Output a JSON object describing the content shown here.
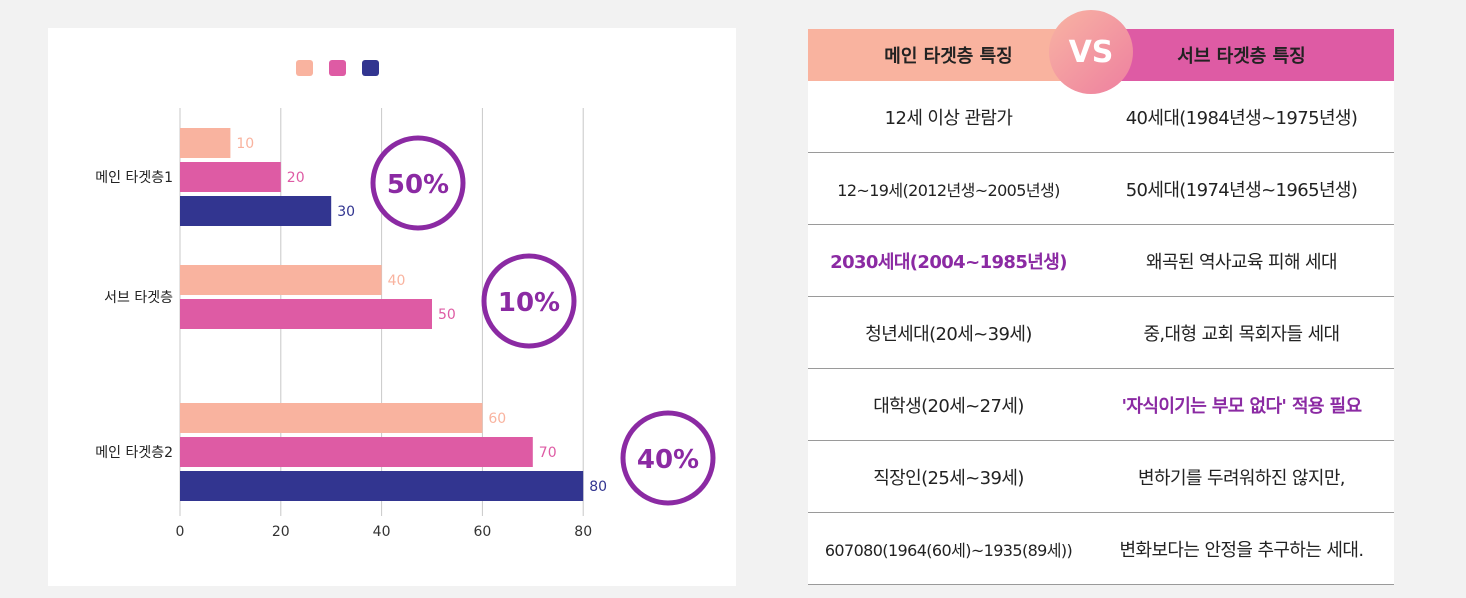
{
  "chart_data": {
    "type": "bar",
    "orientation": "horizontal",
    "categories": [
      "메인 타겟층1",
      "서브 타겟층",
      "메인 타겟층2"
    ],
    "series": [
      {
        "values": [
          10,
          40,
          60
        ],
        "color": "#f9b39f"
      },
      {
        "values": [
          20,
          50,
          70
        ],
        "color": "#de5ba4"
      },
      {
        "values": [
          30,
          null,
          80
        ],
        "color": "#323590"
      }
    ],
    "xlim": [
      0,
      100
    ],
    "x_ticks": [
      0,
      20,
      40,
      60,
      80
    ],
    "grid": true,
    "legend": "top-center",
    "annotations": [
      "50%",
      "10%",
      "40%"
    ],
    "annotation_color": "#8b2aa3"
  },
  "table": {
    "header_left": "메인 타겟층 특징",
    "header_right": "서브 타겟층 특징",
    "vs": "VS",
    "header_left_color": "#f9b39f",
    "header_right_color": "#de5ba4",
    "rows": [
      {
        "left": "12세 이상 관람가",
        "right": "40세대(1984년생~1975년생)"
      },
      {
        "left": "12~19세(2012년생~2005년생)",
        "right": "50세대(1974년생~1965년생)"
      },
      {
        "left": "2030세대(2004~1985년생)",
        "right": "왜곡된 역사교육 피해 세대"
      },
      {
        "left": "청년세대(20세~39세)",
        "right": "중,대형 교회 목회자들 세대"
      },
      {
        "left": "대학생(20세~27세)",
        "right": "'자식이기는 부모 없다' 적용 필요"
      },
      {
        "left": "직장인(25세~39세)",
        "right": "변하기를 두려워하진 않지만,"
      },
      {
        "left": "607080(1964(60세)~1935(89세))",
        "right": "변화보다는 안정을 추구하는 세대."
      }
    ],
    "highlight_color": "#8b2aa3"
  }
}
